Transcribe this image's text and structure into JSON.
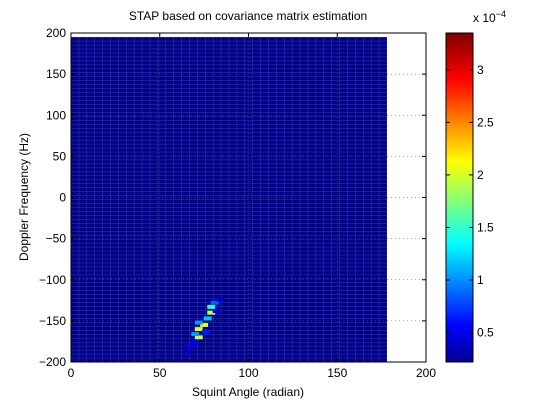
{
  "chart_data": {
    "type": "heatmap",
    "title": "STAP based on covariance matrix estimation",
    "xlabel": "Squint Angle (radian)",
    "ylabel": "Doppler Frequency (Hz)",
    "xlim": [
      0,
      200
    ],
    "ylim": [
      -200,
      200
    ],
    "x_ticks": [
      0,
      50,
      100,
      150,
      200
    ],
    "y_ticks": [
      -200,
      -150,
      -100,
      -50,
      0,
      50,
      100,
      150,
      200
    ],
    "x_tick_labels": [
      "0",
      "50",
      "100",
      "150",
      "200"
    ],
    "y_tick_labels": [
      "−200",
      "−150",
      "−100",
      "−50",
      "0",
      "50",
      "100",
      "150",
      "200"
    ],
    "grid": true,
    "image_extent": {
      "x": [
        0,
        178
      ],
      "y": [
        -200,
        195
      ]
    },
    "cell_size": {
      "x": 4.45,
      "y": 4.8
    },
    "background_value": 2.6e-05,
    "peaks": [
      {
        "x": 72,
        "y": -170,
        "value": 0.0002
      },
      {
        "x": 72,
        "y": -160,
        "value": 0.00021
      },
      {
        "x": 75,
        "y": -155,
        "value": 0.00021
      },
      {
        "x": 79,
        "y": -140,
        "value": 0.0002
      },
      {
        "x": 79,
        "y": -133,
        "value": 0.00015
      },
      {
        "x": 70,
        "y": -166,
        "value": 0.00011
      },
      {
        "x": 72,
        "y": -152,
        "value": 0.00011
      },
      {
        "x": 77,
        "y": -147,
        "value": 0.00012
      },
      {
        "x": 81,
        "y": -128,
        "value": 9e-05
      },
      {
        "x": 67,
        "y": -180,
        "value": 6e-05
      },
      {
        "x": 70,
        "y": -176,
        "value": 6e-05
      },
      {
        "x": 65,
        "y": -188,
        "value": 4.5e-05
      },
      {
        "x": 76,
        "y": -163,
        "value": 7e-05
      },
      {
        "x": 82,
        "y": -138,
        "value": 5.5e-05
      },
      {
        "x": 84,
        "y": -124,
        "value": 4.5e-05
      }
    ],
    "colorbar": {
      "colormap": "jet",
      "range": [
        2.2e-05,
        0.000335
      ],
      "ticks": [
        0.5,
        1,
        1.5,
        2,
        2.5,
        3
      ],
      "tick_labels": [
        "0.5",
        "1",
        "1.5",
        "2",
        "2.5",
        "3"
      ],
      "multiplier_base": "x 10",
      "multiplier_exp": "−4"
    }
  }
}
